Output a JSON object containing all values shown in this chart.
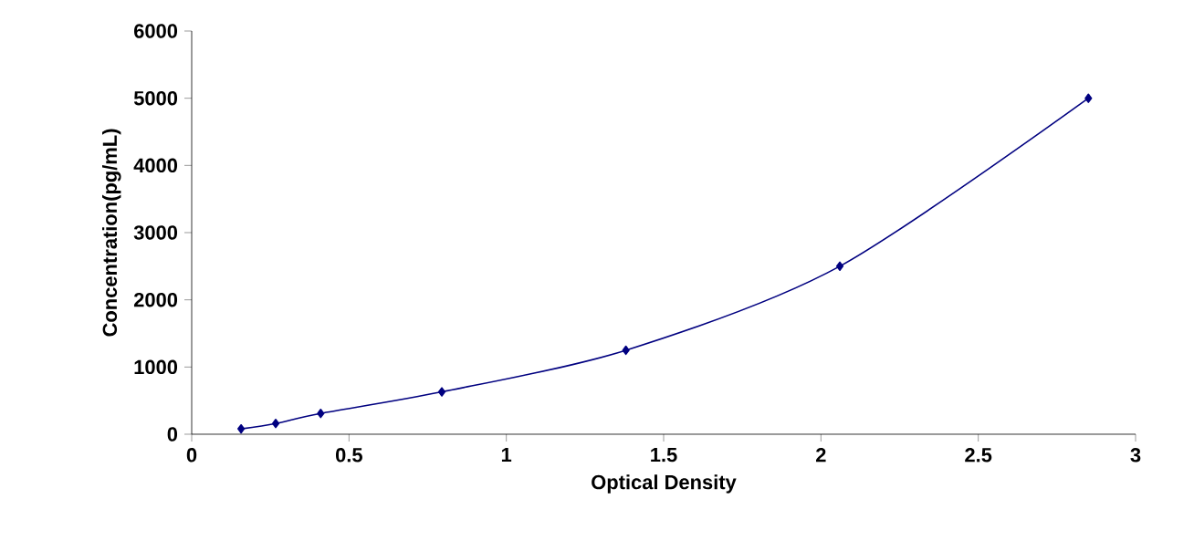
{
  "chart_data": {
    "type": "line",
    "xlabel": "Optical Density",
    "ylabel": "Concentration(pg/mL)",
    "x": [
      0.157,
      0.267,
      0.41,
      0.795,
      1.38,
      2.06,
      2.85
    ],
    "values": [
      80,
      160,
      310,
      630,
      1250,
      2500,
      5000
    ],
    "color": "#000080",
    "marker": "diamond",
    "line_style": "solid",
    "grid": false,
    "xlim": [
      0,
      3
    ],
    "xticks": [
      0,
      0.5,
      1,
      1.5,
      2,
      2.5,
      3
    ],
    "ylim": [
      0,
      6000
    ],
    "yticks": [
      0,
      1000,
      2000,
      3000,
      4000,
      5000,
      6000
    ]
  }
}
